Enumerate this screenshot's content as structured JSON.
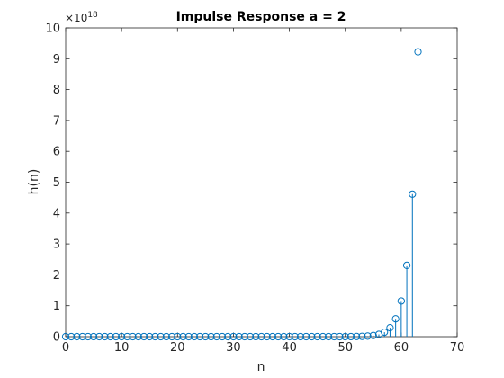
{
  "chart_data": {
    "type": "stem",
    "title": "Impulse Response a = 2",
    "xlabel": "n",
    "ylabel": "h(n)",
    "xlim": [
      0,
      70
    ],
    "ylim": [
      0,
      10
    ],
    "y_exponent_label": {
      "base": "×10",
      "power": "18"
    },
    "x_ticks": [
      "0",
      "10",
      "20",
      "30",
      "40",
      "50",
      "60",
      "70"
    ],
    "y_ticks": [
      "0",
      "1",
      "2",
      "3",
      "4",
      "5",
      "6",
      "7",
      "8",
      "9",
      "10"
    ],
    "series": [
      {
        "color": "#0072BD",
        "x": [
          0,
          1,
          2,
          3,
          4,
          5,
          6,
          7,
          8,
          9,
          10,
          11,
          12,
          13,
          14,
          15,
          16,
          17,
          18,
          19,
          20,
          21,
          22,
          23,
          24,
          25,
          26,
          27,
          28,
          29,
          30,
          31,
          32,
          33,
          34,
          35,
          36,
          37,
          38,
          39,
          40,
          41,
          42,
          43,
          44,
          45,
          46,
          47,
          48,
          49,
          50,
          51,
          52,
          53,
          54,
          55,
          56,
          57,
          58,
          59,
          60,
          61,
          62,
          63
        ],
        "values": [
          0,
          0,
          0,
          0,
          0,
          0,
          0,
          0,
          0,
          0,
          0,
          0,
          0,
          0,
          0,
          0,
          0,
          0,
          0,
          0,
          0,
          0,
          0,
          0,
          0,
          0,
          0,
          0,
          0,
          0,
          0,
          0,
          0,
          0,
          0,
          0,
          0,
          0,
          0,
          0,
          0,
          0,
          0,
          0,
          0,
          0,
          0,
          0,
          0,
          0,
          0,
          0.002,
          0.005,
          0.009,
          0.018,
          0.036,
          0.072,
          0.144,
          0.288,
          0.576,
          1.153,
          2.306,
          4.612,
          9.223
        ]
      }
    ],
    "grid": false,
    "box": true
  }
}
